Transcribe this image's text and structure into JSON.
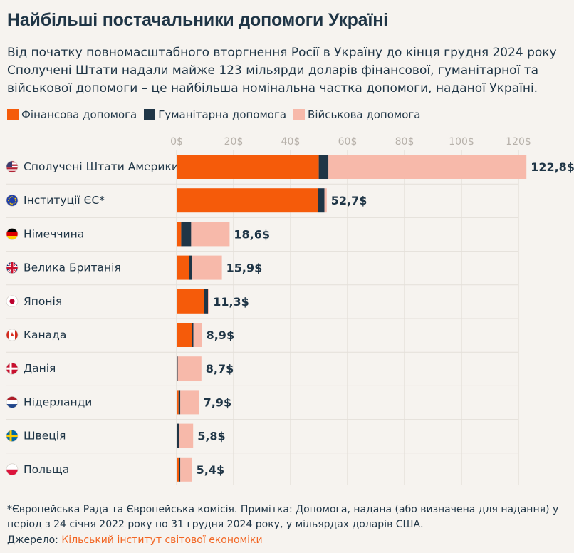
{
  "title": "Найбільші постачальники допомоги Україні",
  "subtitle": "Від початку повномасштабного вторгнення Росії в Україну до кінця грудня 2024 року Сполучені Штати надали майже 123 мільярди доларів фінансової, гуманітарної та військової допомоги – це найбільша номінальна частка допомоги, наданої Україні.",
  "legend": [
    {
      "label": "Фінансова допомога",
      "color": "#f55b0a"
    },
    {
      "label": "Гуманітарна допомога",
      "color": "#1f3546"
    },
    {
      "label": "Військова допомога",
      "color": "#f7b9aa"
    }
  ],
  "footnote": "*Європейська Рада та Європейська комісія. Примітка: Допомога, надана (або визначена для надання) у період з 24 січня 2022 року по 31 грудня 2024 року, у мільярдах доларів США.",
  "source": {
    "label": "Джерело:",
    "link": "Кільський інститут світової економіки"
  },
  "chart_data": {
    "type": "bar",
    "orientation": "horizontal",
    "stacked": true,
    "xlim": [
      0,
      120
    ],
    "ticks": [
      "0$",
      "20$",
      "40$",
      "60$",
      "80$",
      "100$",
      "120$"
    ],
    "tick_values": [
      0,
      20,
      40,
      60,
      80,
      100,
      120
    ],
    "grid": true,
    "legend_position": "top-left",
    "categories": [
      "Сполучені Штати Америки",
      "Інституції ЄС*",
      "Німеччина",
      "Велика Британія",
      "Японія",
      "Канада",
      "Данія",
      "Нідерланди",
      "Швеція",
      "Польща"
    ],
    "flags": [
      "us-flag-icon",
      "eu-flag-icon",
      "germany-flag-icon",
      "uk-flag-icon",
      "japan-flag-icon",
      "canada-flag-icon",
      "denmark-flag-icon",
      "netherlands-flag-icon",
      "sweden-flag-icon",
      "poland-flag-icon"
    ],
    "series": [
      {
        "name": "Фінансова допомога",
        "color": "#f55b0a",
        "values": [
          49.9,
          49.5,
          1.6,
          4.4,
          9.5,
          5.4,
          0.0,
          0.7,
          0.2,
          0.8
        ]
      },
      {
        "name": "Гуманітарна допомога",
        "color": "#1f3546",
        "values": [
          3.4,
          2.4,
          3.5,
          1.0,
          1.5,
          0.5,
          0.4,
          0.6,
          0.6,
          0.5
        ]
      },
      {
        "name": "Військова допомога",
        "color": "#f7b9aa",
        "values": [
          69.5,
          0.8,
          13.5,
          10.5,
          0.3,
          3.0,
          8.3,
          6.6,
          5.0,
          4.1
        ]
      }
    ],
    "totals": [
      "122,8$",
      "52,7$",
      "18,6$",
      "15,9$",
      "11,3$",
      "8,9$",
      "8,7$",
      "7,9$",
      "5,8$",
      "5,4$"
    ],
    "total_values": [
      122.8,
      52.7,
      18.6,
      15.9,
      11.3,
      8.9,
      8.7,
      7.9,
      5.8,
      5.4
    ]
  }
}
